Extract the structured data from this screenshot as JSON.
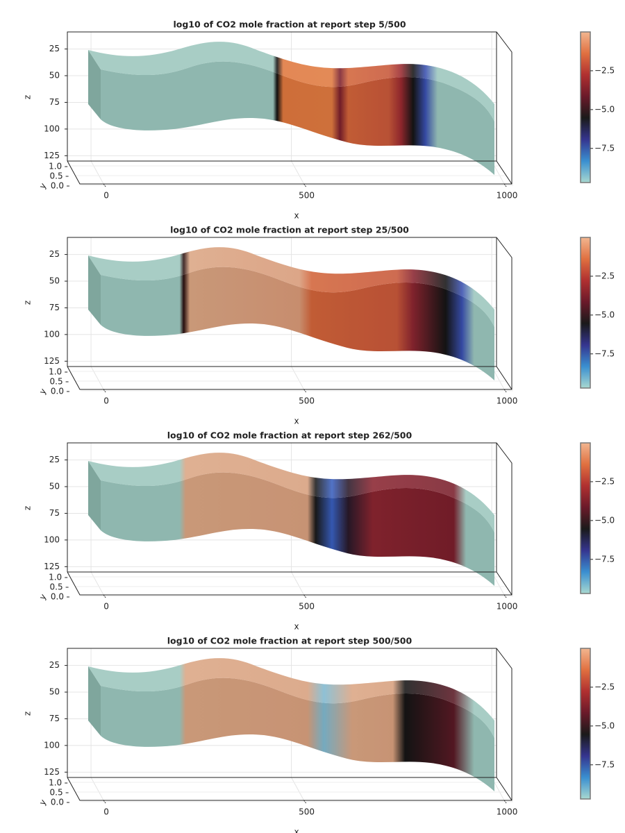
{
  "chart_data": [
    {
      "type": "surface3d",
      "title": "log10 of CO2 mole fraction at report step 5/500",
      "xlabel": "x",
      "ylabel": "y",
      "zlabel": "z",
      "xlim": [
        -66,
        1012
      ],
      "xticks": [
        0,
        500,
        1000
      ],
      "ylim": [
        0,
        1
      ],
      "yticks": [
        {
          "value": 0,
          "label": "0.0"
        },
        {
          "value": 0.5,
          "label": "0.5"
        },
        {
          "value": 1,
          "label": "1.0"
        }
      ],
      "zlim": [
        9,
        130
      ],
      "zticks": [
        25,
        50,
        75,
        100,
        125
      ],
      "z_reversed": true,
      "grid": true,
      "colorbar": {
        "clim": [
          0,
          -9.7
        ],
        "ticks": [
          {
            "value": -2.5,
            "label": "−2.5"
          },
          {
            "value": -5,
            "label": "−5.0"
          },
          {
            "value": -7.5,
            "label": "−7.5"
          }
        ],
        "colormap": [
          "#f2b690",
          "#e07040",
          "#b03030",
          "#6a1a2a",
          "#1a1a1a",
          "#35358f",
          "#3a8fd0",
          "#a8d8d0"
        ]
      }
    },
    {
      "type": "surface3d",
      "title": "log10 of CO2 mole fraction at report step 25/500",
      "xlabel": "x",
      "ylabel": "y",
      "zlabel": "z",
      "xlim": [
        -66,
        1012
      ],
      "xticks": [
        0,
        500,
        1000
      ],
      "ylim": [
        0,
        1
      ],
      "yticks": [
        {
          "value": 0,
          "label": "0.0"
        },
        {
          "value": 0.5,
          "label": "0.5"
        },
        {
          "value": 1,
          "label": "1.0"
        }
      ],
      "zlim": [
        9,
        130
      ],
      "zticks": [
        25,
        50,
        75,
        100,
        125
      ],
      "z_reversed": true,
      "grid": true,
      "colorbar": {
        "clim": [
          0,
          -9.7
        ],
        "ticks": [
          {
            "value": -2.5,
            "label": "−2.5"
          },
          {
            "value": -5,
            "label": "−5.0"
          },
          {
            "value": -7.5,
            "label": "−7.5"
          }
        ],
        "colormap": [
          "#f2b690",
          "#e07040",
          "#b03030",
          "#6a1a2a",
          "#1a1a1a",
          "#35358f",
          "#3a8fd0",
          "#a8d8d0"
        ]
      }
    },
    {
      "type": "surface3d",
      "title": "log10 of CO2 mole fraction at report step 262/500",
      "xlabel": "x",
      "ylabel": "y",
      "zlabel": "z",
      "xlim": [
        -66,
        1012
      ],
      "xticks": [
        0,
        500,
        1000
      ],
      "ylim": [
        0,
        1
      ],
      "yticks": [
        {
          "value": 0,
          "label": "0.0"
        },
        {
          "value": 0.5,
          "label": "0.5"
        },
        {
          "value": 1,
          "label": "1.0"
        }
      ],
      "zlim": [
        9,
        130
      ],
      "zticks": [
        25,
        50,
        75,
        100,
        125
      ],
      "z_reversed": true,
      "grid": true,
      "colorbar": {
        "clim": [
          0,
          -9.7
        ],
        "ticks": [
          {
            "value": -2.5,
            "label": "−2.5"
          },
          {
            "value": -5,
            "label": "−5.0"
          },
          {
            "value": -7.5,
            "label": "−7.5"
          }
        ],
        "colormap": [
          "#f2b690",
          "#e07040",
          "#b03030",
          "#6a1a2a",
          "#1a1a1a",
          "#35358f",
          "#3a8fd0",
          "#a8d8d0"
        ]
      }
    },
    {
      "type": "surface3d",
      "title": "log10 of CO2 mole fraction at report step 500/500",
      "xlabel": "x",
      "ylabel": "y",
      "zlabel": "z",
      "xlim": [
        -66,
        1012
      ],
      "xticks": [
        0,
        500,
        1000
      ],
      "ylim": [
        0,
        1
      ],
      "yticks": [
        {
          "value": 0,
          "label": "0.0"
        },
        {
          "value": 0.5,
          "label": "0.5"
        },
        {
          "value": 1,
          "label": "1.0"
        }
      ],
      "zlim": [
        9,
        130
      ],
      "zticks": [
        25,
        50,
        75,
        100,
        125
      ],
      "z_reversed": true,
      "grid": true,
      "colorbar": {
        "clim": [
          0,
          -9.7
        ],
        "ticks": [
          {
            "value": -2.5,
            "label": "−2.5"
          },
          {
            "value": -5,
            "label": "−5.0"
          },
          {
            "value": -7.5,
            "label": "−7.5"
          }
        ],
        "colormap": [
          "#f2b690",
          "#e07040",
          "#b03030",
          "#6a1a2a",
          "#1a1a1a",
          "#35358f",
          "#3a8fd0",
          "#a8d8d0"
        ]
      }
    }
  ]
}
